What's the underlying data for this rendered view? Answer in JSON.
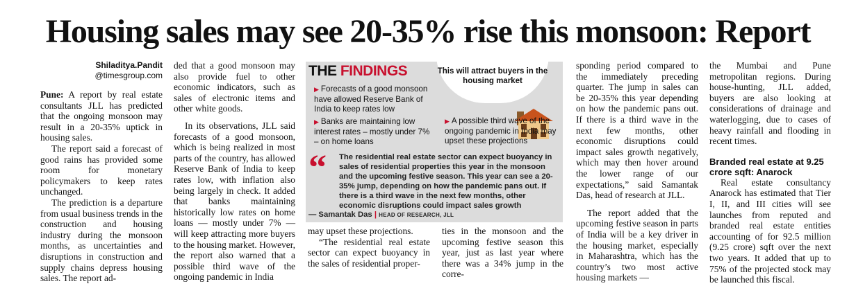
{
  "headline": "Housing sales may see 20-35% rise this monsoon: Report",
  "byline": {
    "name": "Shiladitya.Pandit",
    "email": "@timesgroup.com"
  },
  "col1": {
    "p1_lead": "Pune:",
    "p1": " A report by real estate consultants JLL has predicted that the ongoing monsoon may result in a 20-35% uptick in housing sales.",
    "p2": "The report said a forecast of good rains has provided some room for monetary policymakers to keep rates unchanged.",
    "p3": "The prediction is a departure from usual business trends in the construction and housing industry during the monsoon months, as uncertainties and disruptions in construction and supply chains depress housing sales. The report ad-"
  },
  "col2": {
    "p1": "ded that a good monsoon may also provide fuel to other economic indicators, such as sales of electronic items and other white goods.",
    "p2": "In its observations, JLL said forecasts of a good monsoon, which is being realized in most parts of the country, has allowed Reserve Bank of India to keep rates low, with inflation also being largely in check. It added that banks maintaining historically low rates on home loans — mostly under 7% — will keep attracting more buyers to the housing market. However, the report also warned that a possible third wave of the ongoing pandemic in India"
  },
  "findings": {
    "the": "THE",
    "title": "FINDINGS",
    "circle": "This will attract buyers in the housing market",
    "b1": "Forecasts of a good monsoon have allowed Reserve Bank of India to keep rates low",
    "b2": "Banks are maintaining low interest rates – mostly under 7% – on home loans",
    "b3": "A possible third wave of the ongoing pandemic in India may upset these projections",
    "quote": "The residential real estate sector can expect buoyancy in sales of residential properties this year in the monsoon and the upcoming festive season. This year can see a 20-35% jump, depending on how the pandemic pans out. If there is a third wave in the next few months, other economic disruptions could impact sales growth",
    "quote_name": "— Samantak Das",
    "quote_role": "HEAD OF RESEARCH, JLL"
  },
  "col3": {
    "p1": "may upset these projections.",
    "p2": "“The residential real estate sector can expect buoyancy in the sales of residential proper-"
  },
  "col4": {
    "p1": "ties in the monsoon and the upcoming festive season this year, just as last year where there was a 34% jump in the corre-"
  },
  "col5": {
    "p1": "sponding period compared to the immediately preceding quarter. The jump in sales can be 20-35% this year depending on how the pandemic pans out. If there is a third wave in the next few months, other economic disruptions could impact sales growth negatively, which may then hover around the lower range of our expectations,” said Samantak Das, head of research at JLL.",
    "p2": "The report added that the upcoming festive season in parts of India will be a key driver in the housing market, especially in Maharashtra, which has the country’s two most active housing markets —"
  },
  "col6": {
    "p1": "the Mumbai and Pune metropolitan regions. During house-hunting, JLL added, buyers are also looking at considerations of drainage and waterlogging, due to cases of heavy rainfall and flooding in recent times.",
    "subhead": "Branded real estate at 9.25 crore sqft: Anarock",
    "p2": "Real estate consultancy Anarock has estimated that Tier I, II, and III cities will see launches from reputed and branded real estate entities accounting of for 92.5 million (9.25 crore) sqft over the next two years. It added that up to 75% of the projected stock may be launched this fiscal."
  },
  "colors": {
    "accent": "#c8102e",
    "box": "#dcdcdc"
  }
}
